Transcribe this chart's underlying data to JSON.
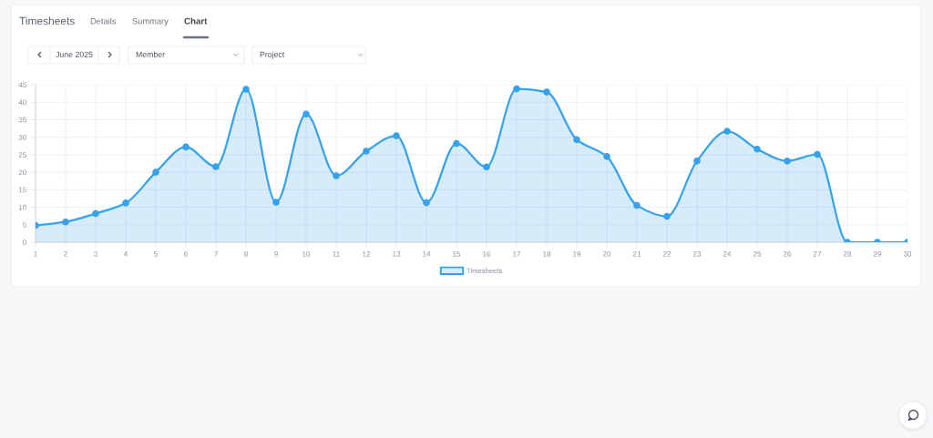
{
  "chart_data": {
    "type": "area",
    "title": "Timesheets",
    "annotations": [
      "Details",
      "Summary",
      "Chart",
      "June 2025",
      "Member",
      "Project"
    ],
    "categories": [
      "1",
      "2",
      "3",
      "4",
      "5",
      "6",
      "7",
      "8",
      "9",
      "10",
      "11",
      "12",
      "13",
      "14",
      "15",
      "16",
      "17",
      "18",
      "19",
      "20",
      "21",
      "22",
      "23",
      "24",
      "25",
      "26",
      "27",
      "28",
      "29",
      "30"
    ],
    "series": [
      {
        "name": "Timesheets",
        "color": "#36a2eb",
        "values": [
          4.8,
          5.8,
          8.2,
          11.2,
          20.0,
          27.2,
          21.6,
          43.7,
          11.4,
          36.6,
          19.0,
          26.0,
          30.4,
          11.3,
          28.2,
          21.5,
          43.8,
          42.9,
          29.3,
          24.5,
          10.5,
          7.4,
          23.2,
          31.7,
          26.6,
          23.2,
          25.1,
          0,
          0,
          0
        ]
      }
    ],
    "ylim": [
      0,
      45
    ],
    "yticks": [
      0,
      5,
      10,
      15,
      20,
      25,
      30,
      35,
      40,
      45
    ],
    "grid": true,
    "legend": "bottom",
    "marker": "circle",
    "line_style": "solid"
  }
}
